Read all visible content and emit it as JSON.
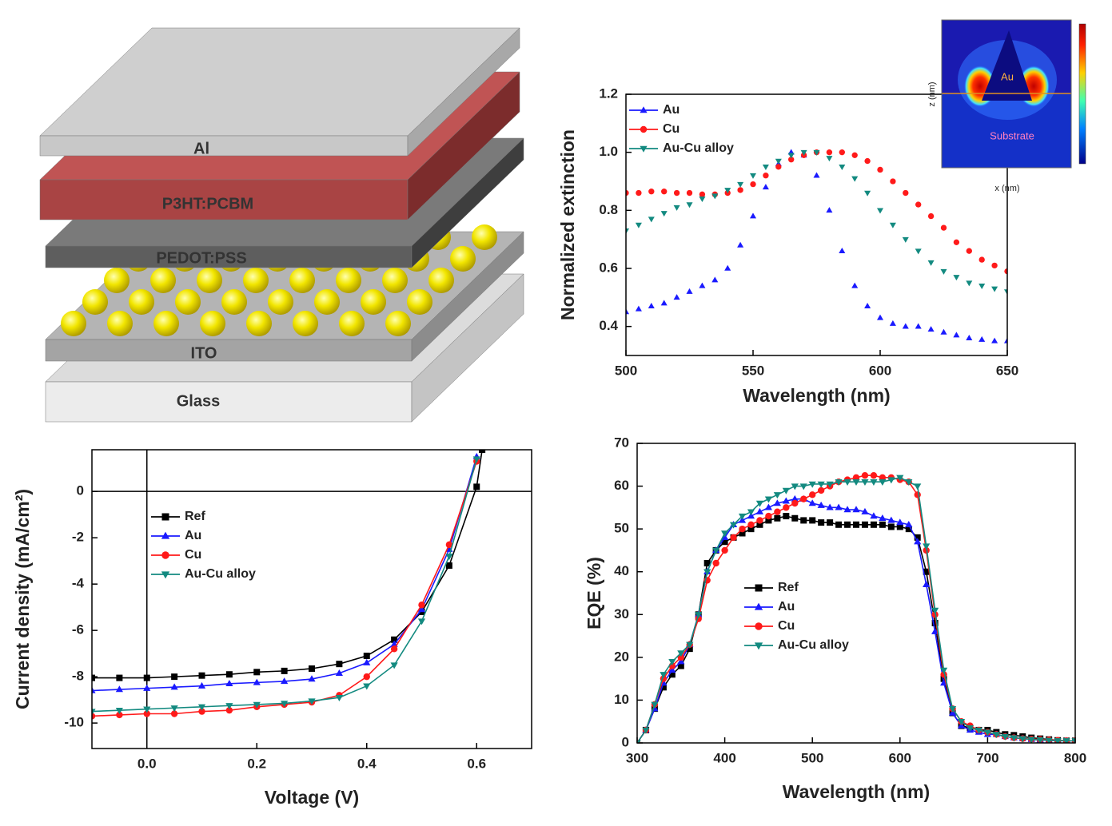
{
  "diagram": {
    "layers": [
      "Al",
      "P3HT:PCBM",
      "PEDOT:PSS",
      "ITO",
      "Glass"
    ]
  },
  "inset": {
    "labels": [
      "Au",
      "Substrate"
    ],
    "xlabel": "x (nm)",
    "ylabel": "z (nm)"
  },
  "chart_data": [
    {
      "type": "line",
      "xlabel": "Wavelength (nm)",
      "ylabel": "Normalized extinction",
      "xlim": [
        500,
        650
      ],
      "xticks": [
        500,
        550,
        600,
        650
      ],
      "ylim": [
        0.3,
        1.2
      ],
      "yticks": [
        0.4,
        0.6,
        0.8,
        {
          "value": 1,
          "label": "1.0"
        },
        1.2
      ],
      "legend": "upper left",
      "grid": false,
      "lines": false,
      "x": [
        500,
        505,
        510,
        515,
        520,
        525,
        530,
        535,
        540,
        545,
        550,
        555,
        560,
        565,
        570,
        575,
        580,
        585,
        590,
        595,
        600,
        605,
        610,
        615,
        620,
        625,
        630,
        635,
        640,
        645,
        650
      ],
      "series": [
        {
          "name": "Au",
          "color": "#1a1aff",
          "marker": "triangle-up",
          "values": [
            0.45,
            0.46,
            0.47,
            0.48,
            0.5,
            0.52,
            0.54,
            0.56,
            0.6,
            0.68,
            0.78,
            0.88,
            0.96,
            1.0,
            0.99,
            0.92,
            0.8,
            0.66,
            0.54,
            0.47,
            0.43,
            0.41,
            0.4,
            0.4,
            0.39,
            0.38,
            0.37,
            0.36,
            0.355,
            0.35,
            0.35
          ]
        },
        {
          "name": "Cu",
          "color": "#ff1a1a",
          "marker": "circle",
          "values": [
            0.86,
            0.86,
            0.865,
            0.865,
            0.86,
            0.86,
            0.855,
            0.855,
            0.86,
            0.87,
            0.89,
            0.92,
            0.95,
            0.975,
            0.99,
            1.0,
            1.0,
            1.0,
            0.99,
            0.97,
            0.94,
            0.9,
            0.86,
            0.82,
            0.78,
            0.74,
            0.69,
            0.66,
            0.63,
            0.61,
            0.59
          ]
        },
        {
          "name": "Au-Cu alloy",
          "color": "#138a80",
          "marker": "triangle-down",
          "values": [
            0.73,
            0.75,
            0.77,
            0.79,
            0.81,
            0.82,
            0.84,
            0.85,
            0.87,
            0.89,
            0.92,
            0.95,
            0.97,
            0.99,
            1.0,
            1.0,
            0.98,
            0.95,
            0.91,
            0.86,
            0.8,
            0.75,
            0.7,
            0.66,
            0.62,
            0.59,
            0.57,
            0.55,
            0.54,
            0.53,
            0.52
          ]
        }
      ]
    },
    {
      "type": "line",
      "xlabel": "Voltage (V)",
      "ylabel": "Current density (mA/cm²)",
      "xlim": [
        -0.1,
        0.7
      ],
      "xticks": [
        {
          "value": 0,
          "label": "0.0"
        },
        0.2,
        0.4,
        0.6
      ],
      "ylim": [
        -11.1,
        1.8
      ],
      "yticks": [
        -10,
        -8,
        -6,
        -4,
        -2,
        0
      ],
      "legend": "upper left",
      "grid": false,
      "lines": true,
      "zero_lines": true,
      "x": [
        -0.1,
        -0.05,
        0,
        0.05,
        0.1,
        0.15,
        0.2,
        0.25,
        0.3,
        0.35,
        0.4,
        0.45,
        0.5,
        0.55,
        0.6,
        0.61
      ],
      "series": [
        {
          "name": "Ref",
          "color": "#000000",
          "marker": "square",
          "values": [
            -8.05,
            -8.05,
            -8.05,
            -8.0,
            -7.95,
            -7.9,
            -7.8,
            -7.75,
            -7.65,
            -7.45,
            -7.1,
            -6.4,
            -5.2,
            -3.2,
            0.2,
            1.8
          ]
        },
        {
          "name": "Au",
          "color": "#1a1aff",
          "marker": "triangle-up",
          "values": [
            -8.6,
            -8.55,
            -8.5,
            -8.45,
            -8.4,
            -8.3,
            -8.25,
            -8.2,
            -8.1,
            -7.85,
            -7.4,
            -6.6,
            -5.1,
            -2.5,
            1.5,
            null
          ]
        },
        {
          "name": "Cu",
          "color": "#ff1a1a",
          "marker": "circle",
          "values": [
            -9.7,
            -9.65,
            -9.6,
            -9.6,
            -9.5,
            -9.45,
            -9.3,
            -9.2,
            -9.1,
            -8.8,
            -8.0,
            -6.8,
            -4.9,
            -2.3,
            1.3,
            null
          ]
        },
        {
          "name": "Au-Cu alloy",
          "color": "#138a80",
          "marker": "triangle-down",
          "values": [
            -9.5,
            -9.45,
            -9.4,
            -9.35,
            -9.3,
            -9.25,
            -9.2,
            -9.15,
            -9.05,
            -8.9,
            -8.4,
            -7.5,
            -5.6,
            -2.8,
            1.4,
            null
          ]
        }
      ]
    },
    {
      "type": "line",
      "xlabel": "Wavelength (nm)",
      "ylabel": "EQE (%)",
      "xlim": [
        300,
        800
      ],
      "xticks": [
        300,
        400,
        500,
        600,
        700,
        800
      ],
      "ylim": [
        0,
        70
      ],
      "yticks": [
        0,
        10,
        20,
        30,
        40,
        50,
        60,
        70
      ],
      "legend": "lower left",
      "grid": false,
      "lines": true,
      "x": [
        300,
        310,
        320,
        330,
        340,
        350,
        360,
        370,
        380,
        390,
        400,
        410,
        420,
        430,
        440,
        450,
        460,
        470,
        480,
        490,
        500,
        510,
        520,
        530,
        540,
        550,
        560,
        570,
        580,
        590,
        600,
        610,
        620,
        630,
        640,
        650,
        660,
        670,
        680,
        690,
        700,
        710,
        720,
        730,
        740,
        750,
        760,
        770,
        780,
        790,
        800
      ],
      "series": [
        {
          "name": "Ref",
          "color": "#000000",
          "marker": "square",
          "values": [
            0,
            3,
            8,
            13,
            16,
            18,
            22,
            30,
            42,
            45,
            47,
            48,
            49,
            50,
            51,
            52,
            52.5,
            53,
            52.5,
            52,
            52,
            51.5,
            51.5,
            51,
            51,
            51,
            51,
            51,
            51,
            50.5,
            50.5,
            50,
            48,
            40,
            28,
            15,
            7,
            4,
            3.5,
            3,
            3,
            2.5,
            2,
            1.8,
            1.5,
            1.2,
            1,
            0.8,
            0.6,
            0.5,
            0.5
          ]
        },
        {
          "name": "Au",
          "color": "#1a1aff",
          "marker": "triangle-up",
          "values": [
            0,
            3,
            8,
            14,
            17,
            19,
            23,
            30,
            40,
            45,
            48,
            51,
            52,
            53,
            54,
            55,
            56,
            56.5,
            57,
            57,
            56,
            55.5,
            55,
            55,
            54.5,
            54.5,
            54,
            53,
            52.5,
            52,
            51.5,
            51,
            47,
            37,
            26,
            14,
            7,
            4,
            3,
            2.5,
            2,
            2,
            1.5,
            1.2,
            1,
            0.8,
            0.7,
            0.6,
            0.5,
            0.5,
            0.5
          ]
        },
        {
          "name": "Cu",
          "color": "#ff1a1a",
          "marker": "circle",
          "values": [
            0,
            3,
            9,
            15,
            18,
            20,
            23,
            29,
            38,
            42,
            45,
            48,
            50,
            51,
            52,
            53,
            54,
            55,
            56,
            57,
            58,
            59,
            60,
            61,
            61.5,
            62,
            62.5,
            62.5,
            62,
            62,
            61.5,
            61,
            58,
            45,
            30,
            16,
            8,
            5,
            4,
            3,
            2.5,
            2,
            1.5,
            1.2,
            1,
            0.9,
            0.8,
            0.7,
            0.6,
            0.5,
            0.5
          ]
        },
        {
          "name": "Au-Cu alloy",
          "color": "#138a80",
          "marker": "triangle-down",
          "values": [
            0,
            3,
            9,
            16,
            19,
            21,
            23,
            30,
            40,
            45,
            49,
            51,
            53,
            54,
            56,
            57,
            58,
            59,
            60,
            60,
            60.5,
            60.5,
            60.5,
            61,
            61,
            61,
            61,
            61,
            61,
            61.5,
            62,
            61,
            60,
            46,
            31,
            17,
            8,
            5,
            3.5,
            3,
            2.5,
            2,
            1.5,
            1.2,
            1,
            0.8,
            0.7,
            0.6,
            0.5,
            0.5,
            0.5
          ]
        }
      ]
    }
  ]
}
